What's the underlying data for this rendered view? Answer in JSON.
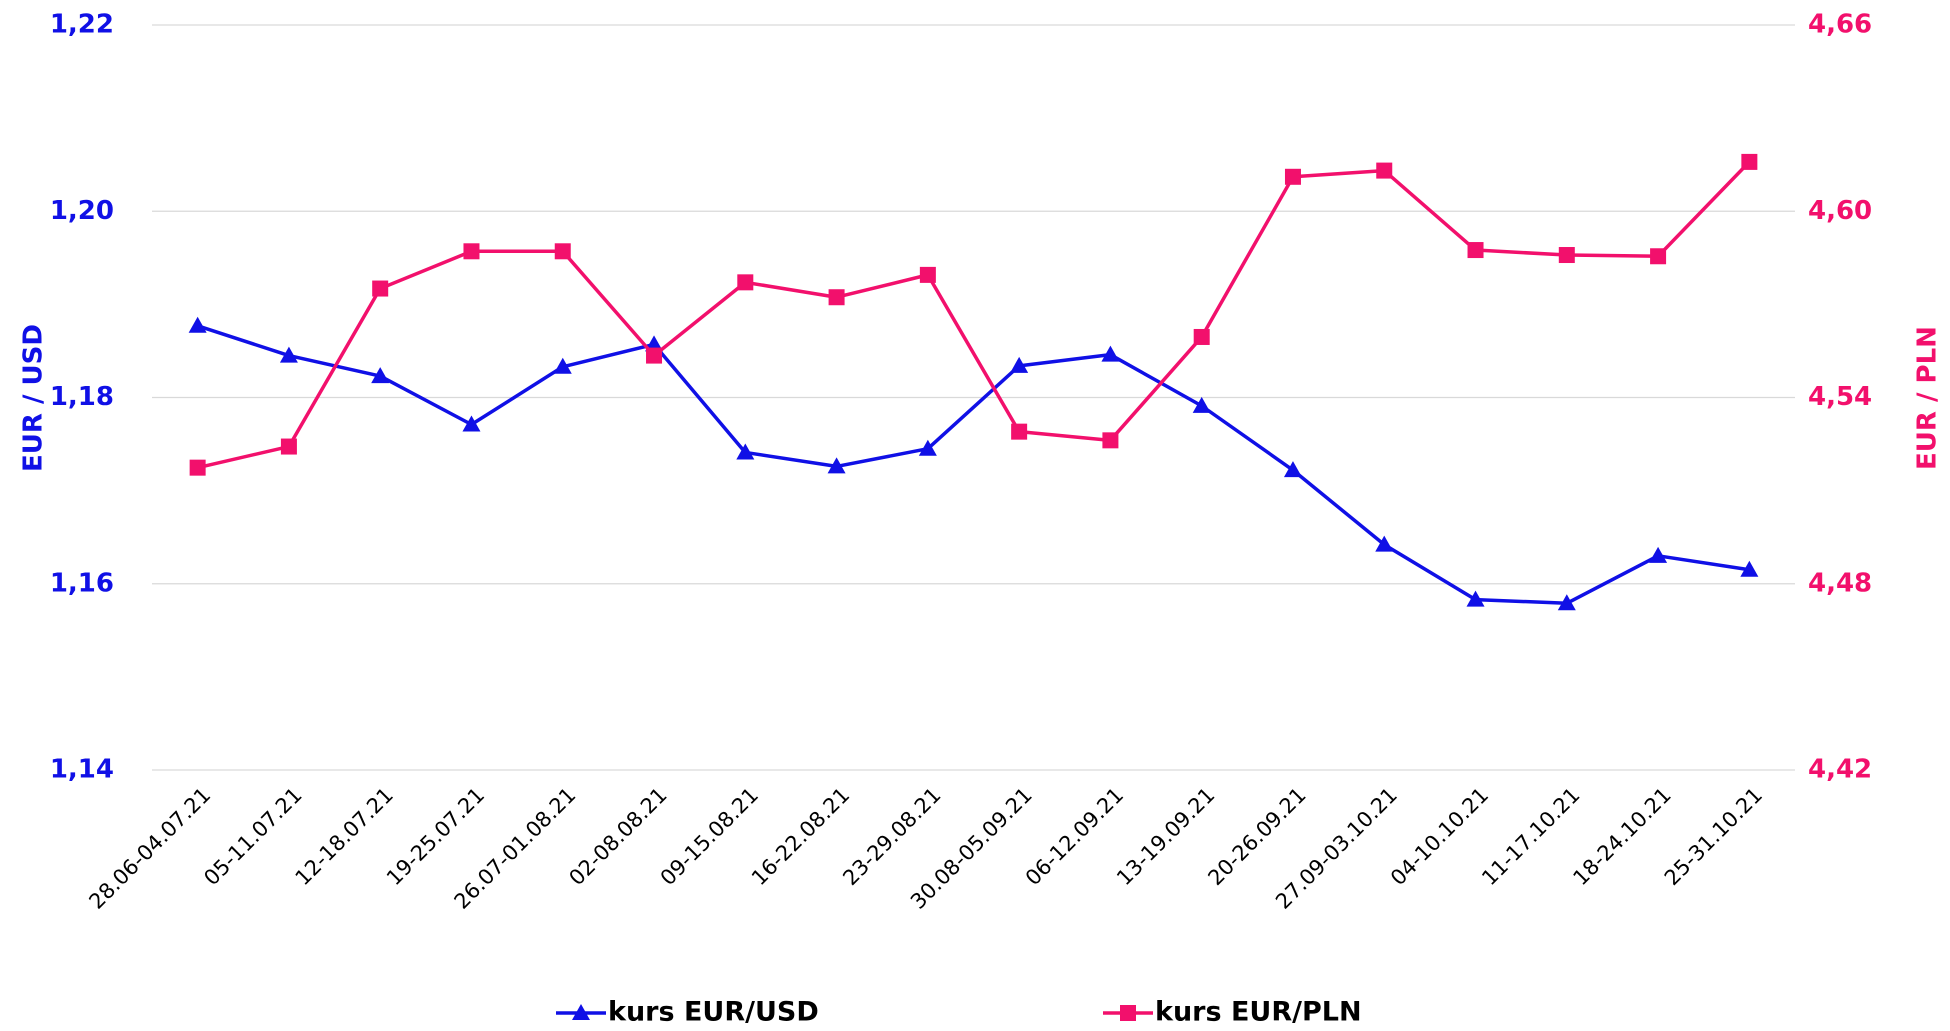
{
  "chart_data": {
    "type": "line",
    "categories": [
      "28.06-04.07.21",
      "05-11.07.21",
      "12-18.07.21",
      "19-25.07.21",
      "26.07-01.08.21",
      "02-08.08.21",
      "09-15.08.21",
      "16-22.08.21",
      "23-29.08.21",
      "30.08-05.09.21",
      "06-12.09.21",
      "13-19.09.21",
      "20-26.09.21",
      "27.09-03.10.21",
      "04-10.10.21",
      "11-17.10.21",
      "18-24.10.21",
      "25-31.10.21"
    ],
    "ylabel": "EUR / USD",
    "y2label": "EUR / PLN",
    "ylim": [
      1.14,
      1.22
    ],
    "yticks": [
      {
        "value": 1.14,
        "label": "1,14"
      },
      {
        "value": 1.16,
        "label": "1,16"
      },
      {
        "value": 1.18,
        "label": "1,18"
      },
      {
        "value": 1.2,
        "label": "1,20"
      },
      {
        "value": 1.22,
        "label": "1,22"
      }
    ],
    "y2lim": [
      4.42,
      4.66
    ],
    "y2ticks": [
      {
        "value": 4.42,
        "label": "4,42"
      },
      {
        "value": 4.48,
        "label": "4,48"
      },
      {
        "value": 4.54,
        "label": "4,54"
      },
      {
        "value": 4.6,
        "label": "4,60"
      },
      {
        "value": 4.66,
        "label": "4,66"
      }
    ],
    "grid": true,
    "legend": "bottom",
    "series": [
      {
        "name": "kurs EUR/USD",
        "color": "#1010e6",
        "marker": "triangle",
        "axis": "y",
        "values": [
          1.1877,
          1.1845,
          1.1823,
          1.1771,
          1.1833,
          1.1857,
          1.1741,
          1.1726,
          1.1745,
          1.1834,
          1.1846,
          1.1791,
          1.1722,
          1.1642,
          1.1583,
          1.1579,
          1.163,
          1.1615
        ]
      },
      {
        "name": "kurs EUR/PLN",
        "color": "#f2106c",
        "marker": "square",
        "axis": "y2",
        "values": [
          4.5174,
          4.5242,
          4.5751,
          4.5871,
          4.5871,
          4.5535,
          4.5771,
          4.5723,
          4.5795,
          4.529,
          4.5262,
          4.5595,
          4.6111,
          4.6131,
          4.5875,
          4.5859,
          4.5855,
          4.6159
        ]
      }
    ]
  }
}
